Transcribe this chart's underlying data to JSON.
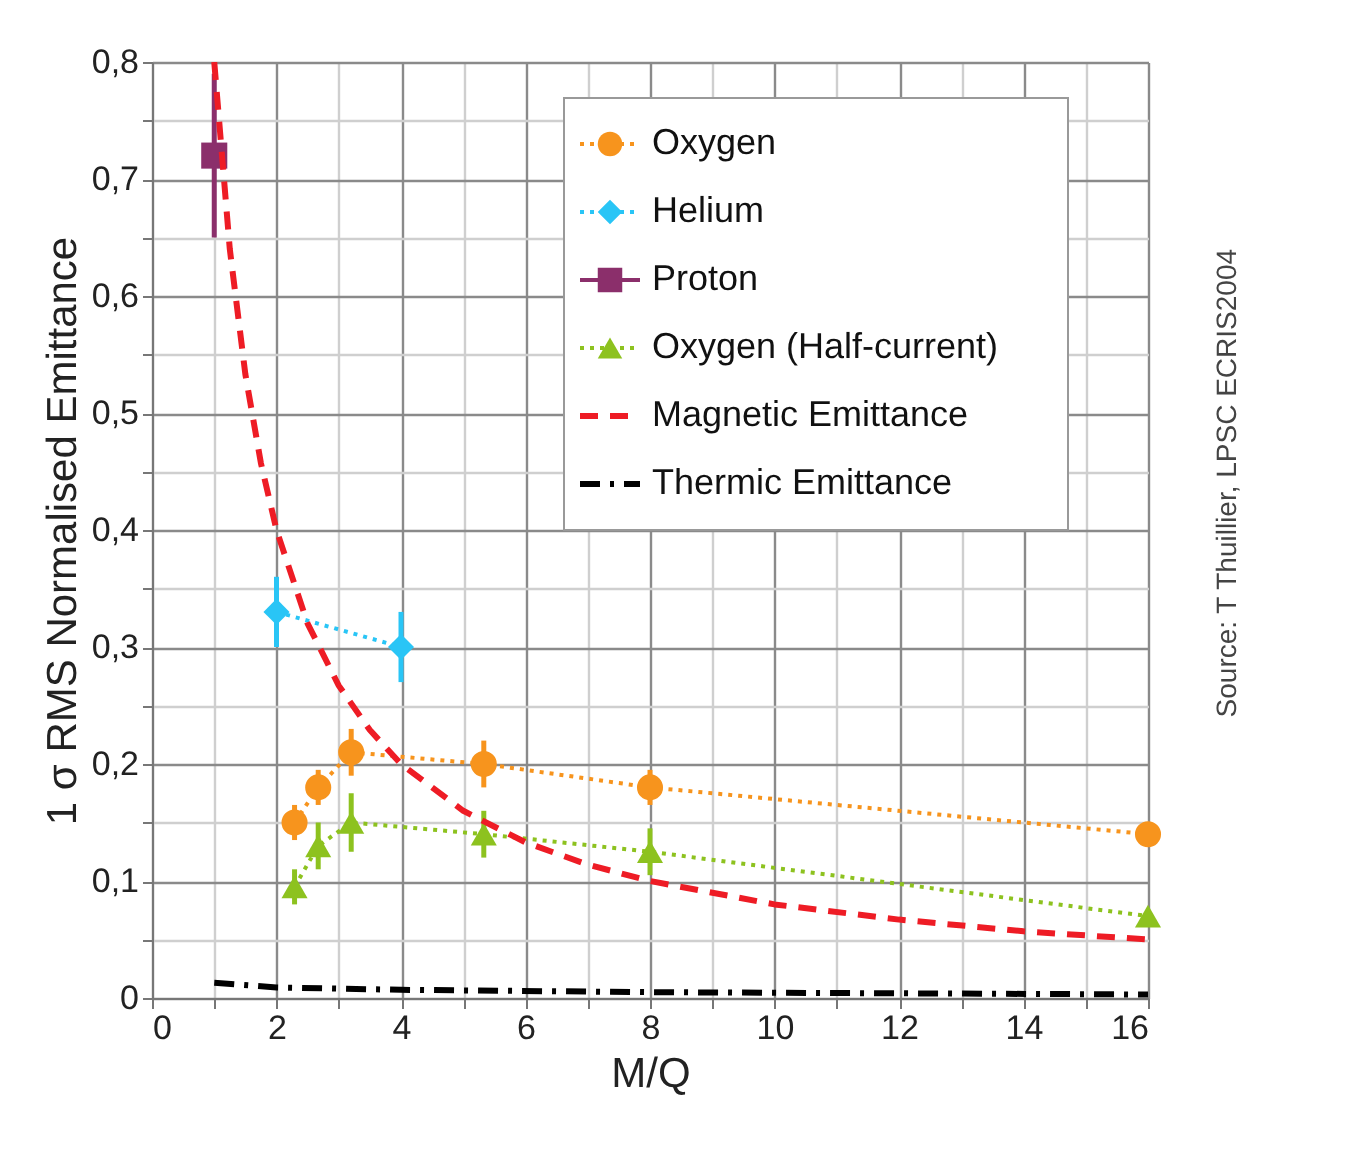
{
  "chart_data": {
    "type": "line",
    "xlabel": "M/Q",
    "ylabel": "1 σ RMS Normalised Emittance",
    "annotations": [
      "Source: T Thuillier, LPSC ECRIS2004"
    ],
    "xlim": [
      0,
      16
    ],
    "ylim": [
      0,
      0.8
    ],
    "xticks": [
      0,
      {
        "value": 1,
        "label": null
      },
      2,
      {
        "value": 3,
        "label": null
      },
      4,
      {
        "value": 5,
        "label": null
      },
      6,
      {
        "value": 7,
        "label": null
      },
      8,
      {
        "value": 9,
        "label": null
      },
      10,
      {
        "value": 11,
        "label": null
      },
      12,
      {
        "value": 13,
        "label": null
      },
      14,
      {
        "value": 15,
        "label": null
      },
      16
    ],
    "yticks": [
      0,
      {
        "value": 0.05,
        "label": null
      },
      {
        "value": 0.1,
        "label": "0,1"
      },
      {
        "value": 0.15,
        "label": null
      },
      {
        "value": 0.2,
        "label": "0,2"
      },
      {
        "value": 0.25,
        "label": null
      },
      {
        "value": 0.3,
        "label": "0,3"
      },
      {
        "value": 0.35,
        "label": null
      },
      {
        "value": 0.4,
        "label": "0,4"
      },
      {
        "value": 0.45,
        "label": null
      },
      {
        "value": 0.5,
        "label": "0,5"
      },
      {
        "value": 0.55,
        "label": null
      },
      {
        "value": 0.6,
        "label": "0,6"
      },
      {
        "value": 0.65,
        "label": null
      },
      {
        "value": 0.7,
        "label": "0,7"
      },
      {
        "value": 0.75,
        "label": null
      },
      {
        "value": 0.8,
        "label": "0,8"
      }
    ],
    "grid": true,
    "legend": "top right",
    "series": [
      {
        "name": "Oxygen",
        "color": "#f7941d",
        "marker": "circle",
        "line_style": "dotted",
        "x": [
          2.29,
          2.67,
          3.2,
          5.33,
          8,
          16
        ],
        "values": [
          0.15,
          0.18,
          0.21,
          0.2,
          0.18,
          0.14
        ],
        "errors": [
          0.015,
          0.015,
          0.02,
          0.02,
          0.015,
          null
        ]
      },
      {
        "name": "Helium",
        "color": "#29c5f6",
        "marker": "diamond",
        "line_style": "dotted",
        "x": [
          2,
          4
        ],
        "values": [
          0.33,
          0.3
        ],
        "errors": [
          0.03,
          0.03
        ]
      },
      {
        "name": "Proton",
        "color": "#8b2f6b",
        "marker": "square",
        "line_style": "solid",
        "x": [
          1
        ],
        "values": [
          0.72
        ],
        "errors": [
          0.07
        ]
      },
      {
        "name": "Oxygen (Half-current)",
        "color": "#8dc21f",
        "marker": "triangle",
        "line_style": "dotted",
        "x": [
          2.29,
          2.67,
          3.2,
          5.33,
          8,
          16
        ],
        "values": [
          0.095,
          0.13,
          0.15,
          0.14,
          0.125,
          0.07
        ],
        "errors": [
          0.015,
          0.02,
          0.025,
          0.02,
          0.02,
          null
        ]
      },
      {
        "name": "Magnetic Emittance",
        "color": "#ee1c25",
        "marker": "none",
        "line_style": "dashed",
        "x": [
          1,
          1.25,
          1.5,
          1.75,
          2,
          2.5,
          3,
          3.5,
          4,
          5,
          6,
          7,
          8,
          10,
          12,
          14,
          16
        ],
        "values": [
          0.8,
          0.64,
          0.533,
          0.457,
          0.4,
          0.32,
          0.267,
          0.229,
          0.2,
          0.16,
          0.133,
          0.114,
          0.1,
          0.08,
          0.067,
          0.057,
          0.05
        ]
      },
      {
        "name": "Thermic Emittance",
        "color": "#000000",
        "marker": "none",
        "line_style": "dashdot",
        "x": [
          1,
          2,
          4,
          8,
          16
        ],
        "values": [
          0.013,
          0.009,
          0.007,
          0.005,
          0.003
        ]
      }
    ]
  }
}
